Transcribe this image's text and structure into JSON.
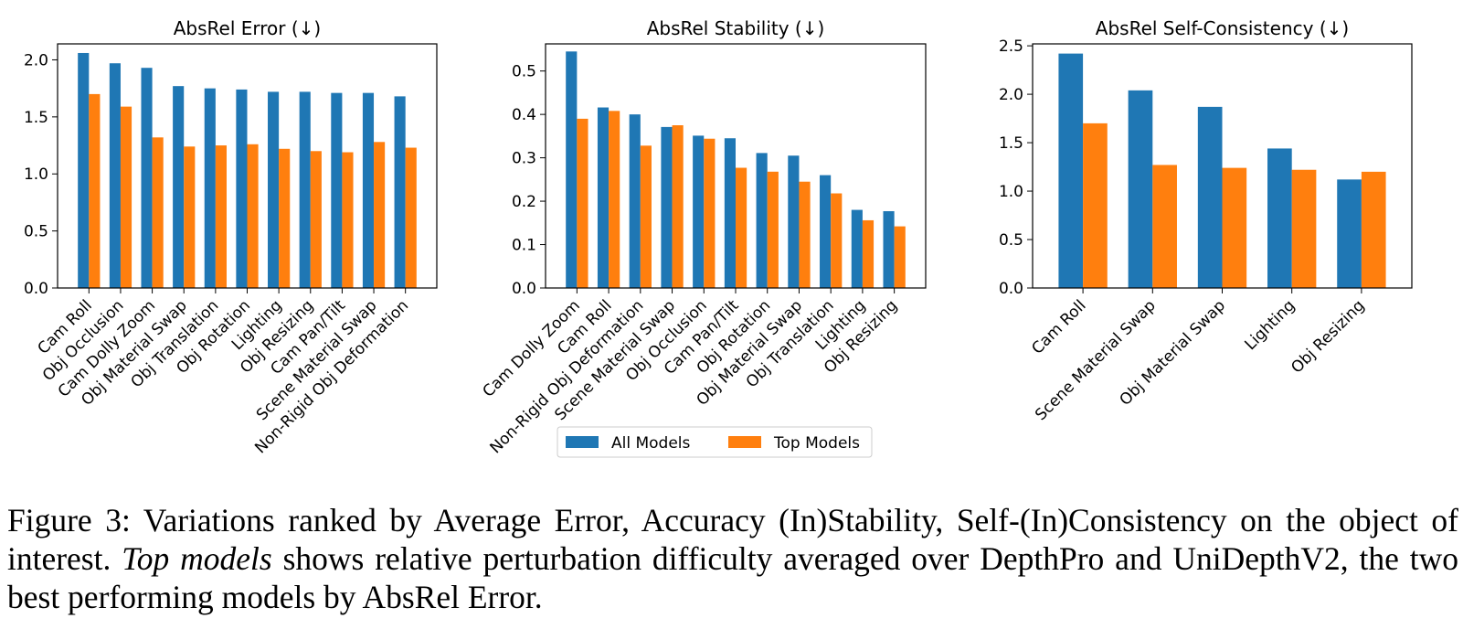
{
  "colors": {
    "all": "#1f77b4",
    "top": "#ff7f0e"
  },
  "legend": {
    "all_label": "All Models",
    "top_label": "Top Models"
  },
  "chart_data": [
    {
      "type": "bar",
      "title": "AbsRel Error (↓)",
      "categories": [
        "Cam Roll",
        "Obj Occlusion",
        "Cam Dolly Zoom",
        "Obj Material Swap",
        "Obj Translation",
        "Obj Rotation",
        "Lighting",
        "Obj Resizing",
        "Cam Pan/Tilt",
        "Scene Material Swap",
        "Non-Rigid Obj Deformation"
      ],
      "series": [
        {
          "name": "All Models",
          "values": [
            2.06,
            1.97,
            1.93,
            1.77,
            1.75,
            1.74,
            1.72,
            1.72,
            1.71,
            1.71,
            1.68
          ]
        },
        {
          "name": "Top Models",
          "values": [
            1.7,
            1.59,
            1.32,
            1.24,
            1.25,
            1.26,
            1.22,
            1.2,
            1.19,
            1.28,
            1.23
          ]
        }
      ],
      "ylim": [
        0,
        2.14
      ],
      "yticks": [
        0.0,
        0.5,
        1.0,
        1.5,
        2.0
      ],
      "ytick_labels": [
        "0.0",
        "0.5",
        "1.0",
        "1.5",
        "2.0"
      ],
      "legend": false
    },
    {
      "type": "bar",
      "title": "AbsRel Stability (↓)",
      "categories": [
        "Cam Dolly Zoom",
        "Cam Roll",
        "Non-Rigid Obj Deformation",
        "Scene Material Swap",
        "Obj Occlusion",
        "Cam Pan/Tilt",
        "Obj Rotation",
        "Obj Material Swap",
        "Obj Translation",
        "Lighting",
        "Obj Resizing"
      ],
      "series": [
        {
          "name": "All Models",
          "values": [
            0.545,
            0.416,
            0.4,
            0.371,
            0.351,
            0.345,
            0.311,
            0.305,
            0.26,
            0.18,
            0.177
          ]
        },
        {
          "name": "Top Models",
          "values": [
            0.39,
            0.408,
            0.328,
            0.375,
            0.344,
            0.277,
            0.268,
            0.245,
            0.218,
            0.156,
            0.142
          ]
        }
      ],
      "ylim": [
        0,
        0.5625
      ],
      "yticks": [
        0.0,
        0.1,
        0.2,
        0.3,
        0.4,
        0.5
      ],
      "ytick_labels": [
        "0.0",
        "0.1",
        "0.2",
        "0.3",
        "0.4",
        "0.5"
      ],
      "legend": true,
      "legend_placement": "bottom-center"
    },
    {
      "type": "bar",
      "title": "AbsRel Self-Consistency (↓)",
      "categories": [
        "Cam Roll",
        "Scene Material Swap",
        "Obj Material Swap",
        "Lighting",
        "Obj Resizing"
      ],
      "series": [
        {
          "name": "All Models",
          "values": [
            2.42,
            2.04,
            1.87,
            1.44,
            1.12
          ]
        },
        {
          "name": "Top Models",
          "values": [
            1.7,
            1.27,
            1.24,
            1.22,
            1.2
          ]
        }
      ],
      "ylim": [
        0,
        2.52
      ],
      "yticks": [
        0.0,
        0.5,
        1.0,
        1.5,
        2.0,
        2.5
      ],
      "ytick_labels": [
        "0.0",
        "0.5",
        "1.0",
        "1.5",
        "2.0",
        "2.5"
      ],
      "legend": false
    }
  ],
  "caption": {
    "part1": "Figure 3: Variations ranked by Average Error, Accuracy (In)Stability, Self-(In)Consistency on the object of interest. ",
    "emph": "Top models",
    "part2": " shows relative perturbation difficulty averaged over DepthPro and UniDepthV2, the two best performing models by AbsRel Error."
  }
}
